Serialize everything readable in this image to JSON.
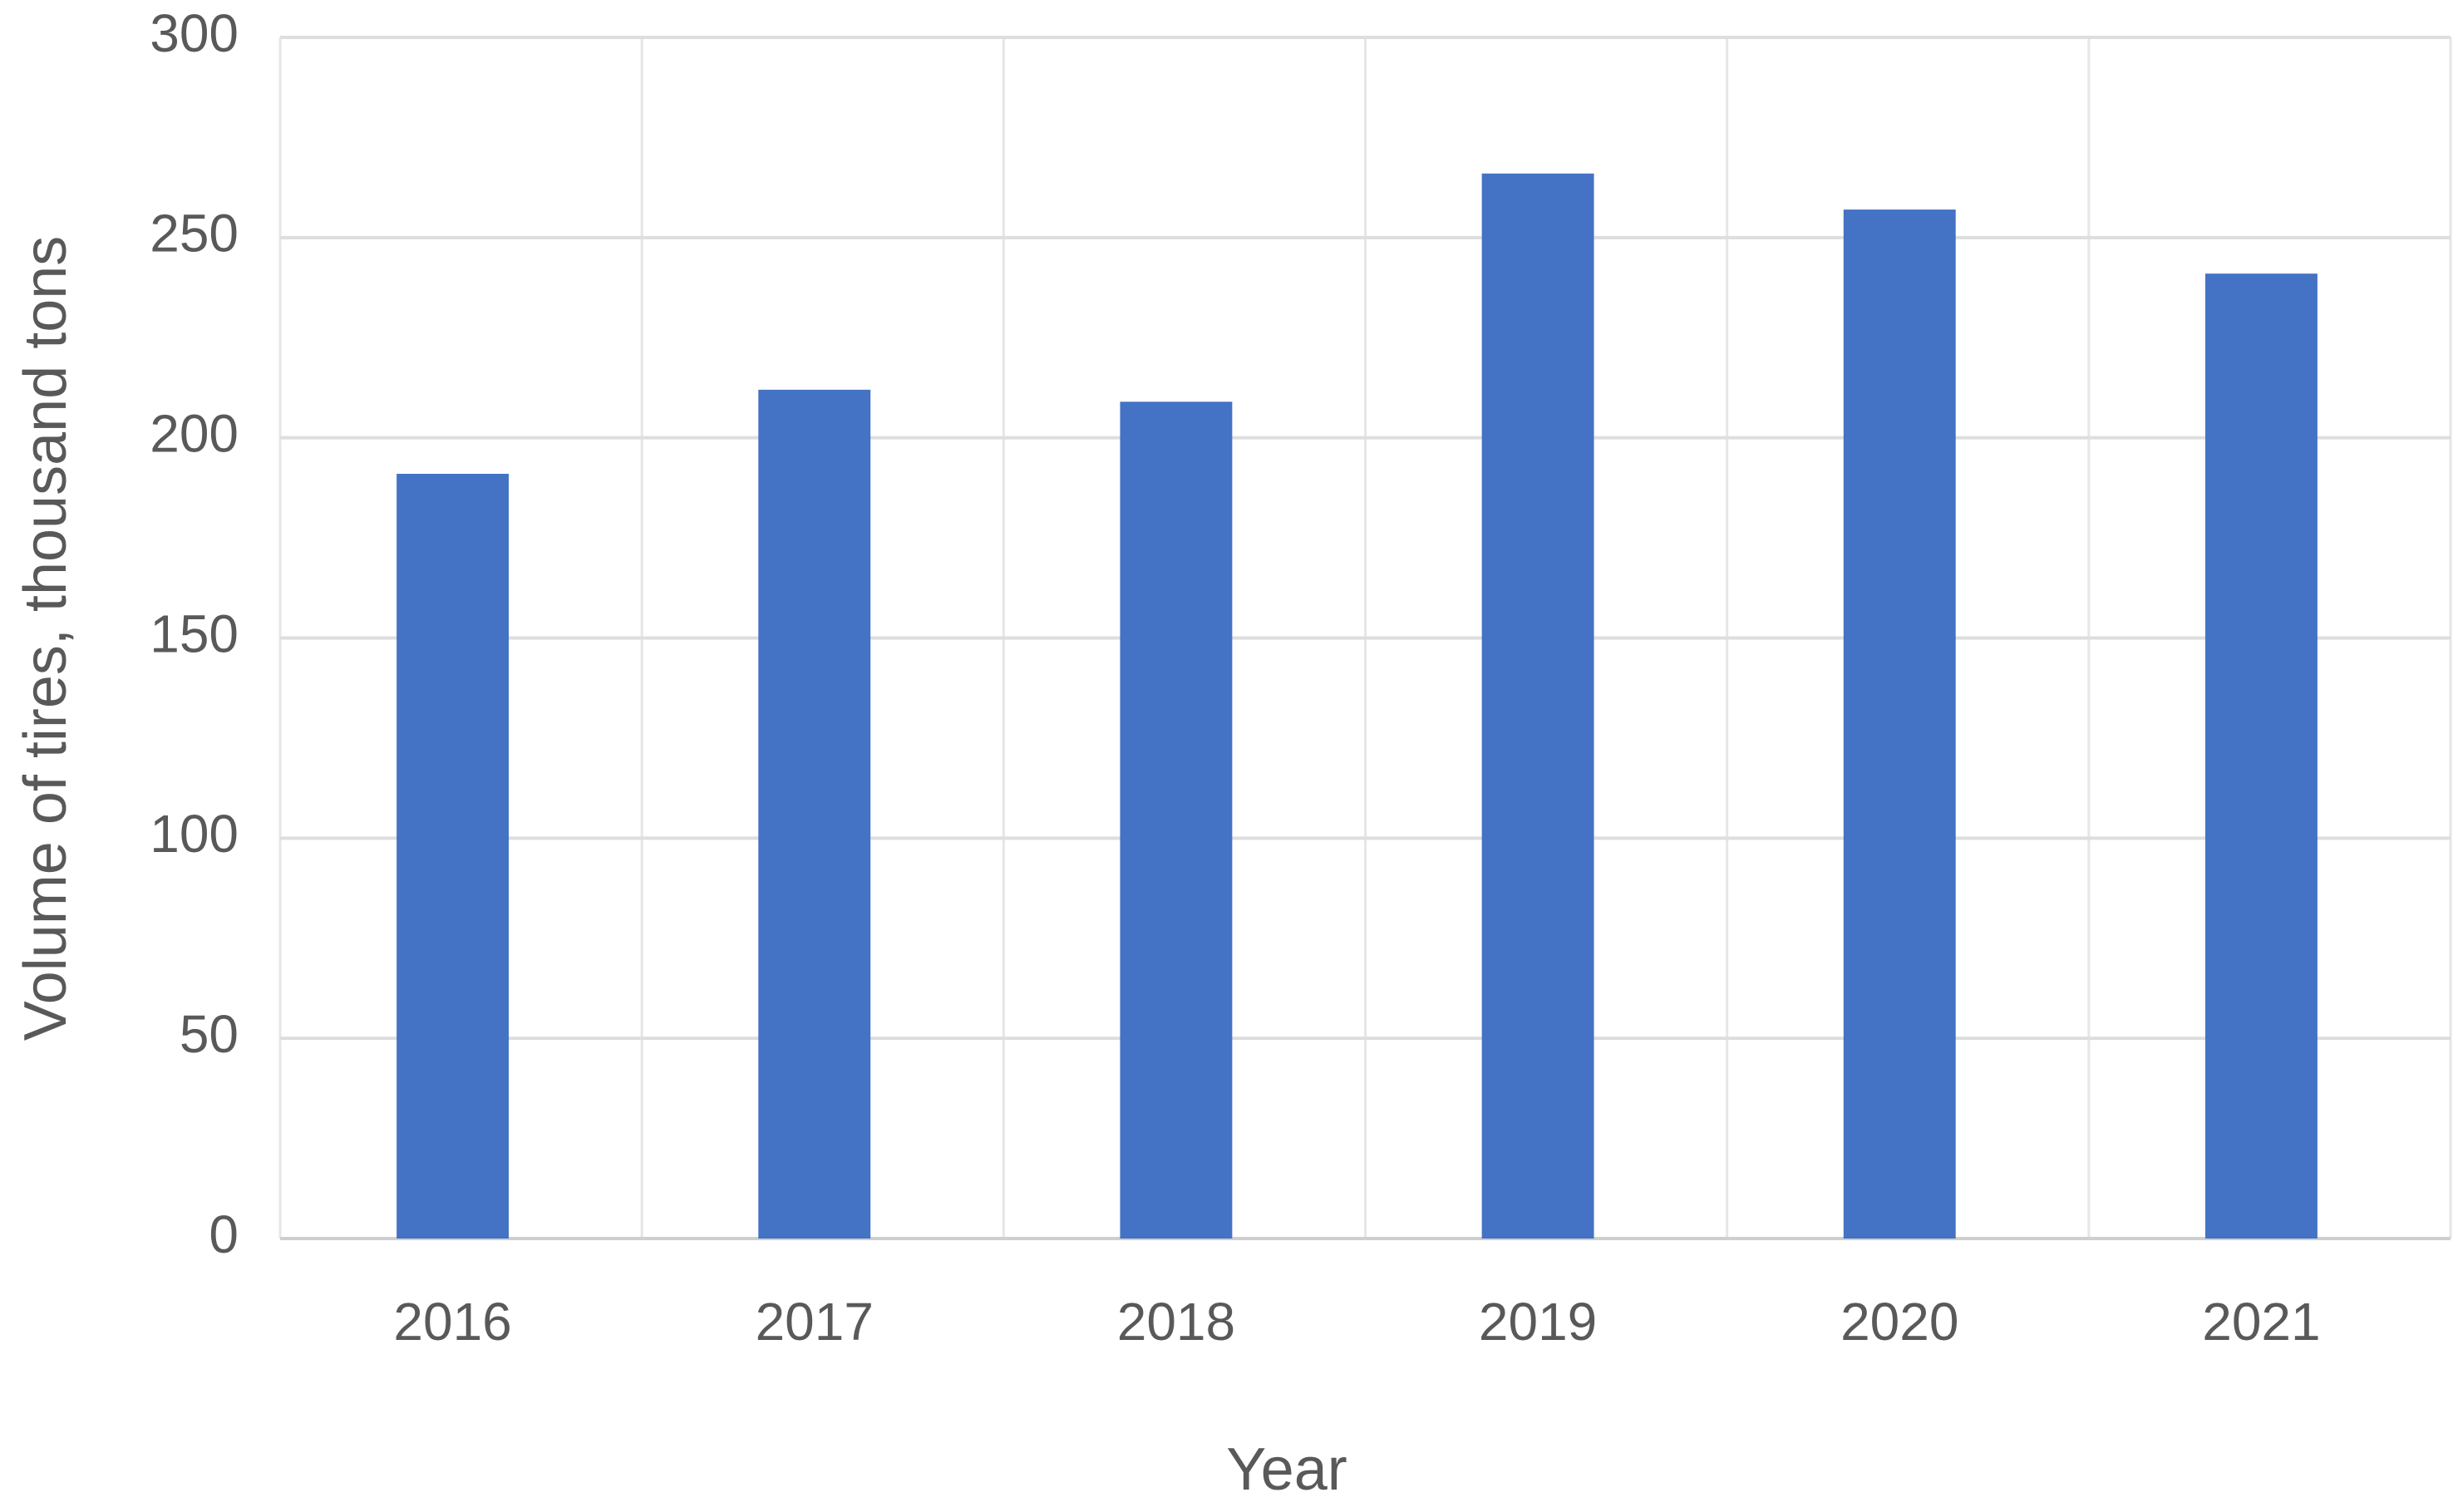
{
  "chart_data": {
    "type": "bar",
    "x_label": "Year",
    "y_label": "Volume of tires, thousand tons",
    "categories": [
      "2016",
      "2017",
      "2018",
      "2019",
      "2020",
      "2021"
    ],
    "values": [
      191,
      212,
      209,
      266,
      257,
      241
    ],
    "color": "#4472c4",
    "ylim": [
      0,
      300
    ],
    "yticks": [
      0,
      50,
      100,
      150,
      200,
      250,
      300
    ],
    "grid": true
  }
}
